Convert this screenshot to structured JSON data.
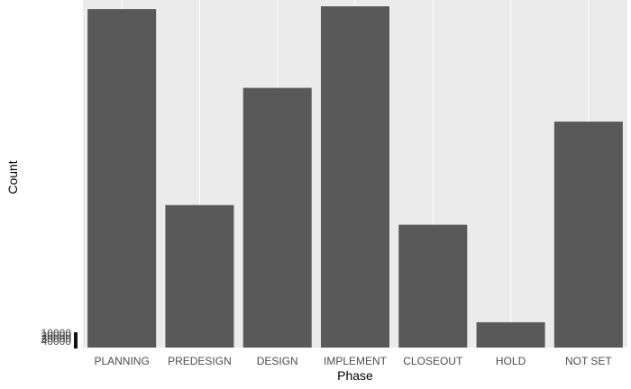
{
  "chart_data": {
    "type": "bar",
    "categories": [
      "PLANNING",
      "PREDESIGN",
      "DESIGN",
      "IMPLEMENT",
      "CLOSEOUT",
      "HOLD",
      "NOT SET"
    ],
    "values": [
      361,
      152,
      277,
      364,
      131,
      27,
      241
    ],
    "title": "",
    "xlabel": "Phase",
    "ylabel": "Count",
    "ylim": [
      0,
      364
    ],
    "y_tick_labels_overlapped": [
      "10000",
      "20000",
      "30000",
      "40000"
    ],
    "grid": true,
    "legend": "none",
    "colors": {
      "panel_background": "#EBEBEB",
      "gridline": "#FFFFFF",
      "bar_fill": "#595959",
      "text": "#4D4D4D"
    }
  }
}
